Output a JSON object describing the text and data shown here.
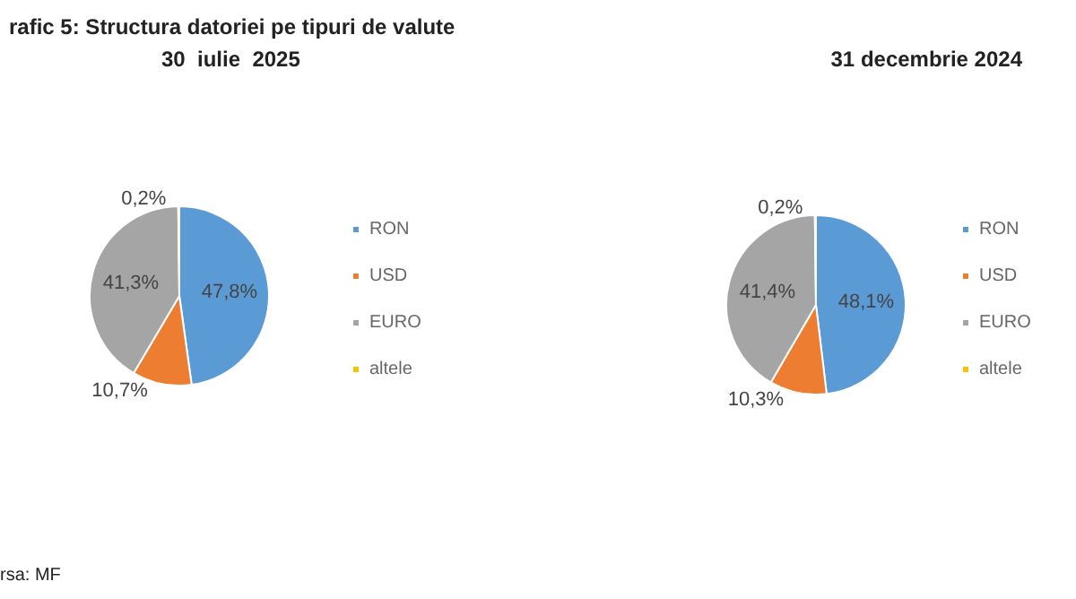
{
  "chart_data": [
    {
      "type": "pie",
      "title": "rafic 5: Structura datoriei pe tipuri de valute",
      "subtitle": "30  iulie  2025",
      "categories": [
        "RON",
        "USD",
        "EURO",
        "altele"
      ],
      "values": [
        47.8,
        10.7,
        41.3,
        0.2
      ],
      "value_labels": [
        "47,8%",
        "10,7%",
        "41,3%",
        "0,2%"
      ],
      "colors": [
        "#5b9bd5",
        "#ed7d31",
        "#a5a5a5",
        "#ffc000"
      ],
      "legend": "right",
      "annotations": [
        "rsa: MF"
      ]
    },
    {
      "type": "pie",
      "title": "31 decembrie 2024",
      "categories": [
        "RON",
        "USD",
        "EURO",
        "altele"
      ],
      "values": [
        48.1,
        10.3,
        41.4,
        0.2
      ],
      "value_labels": [
        "48,1%",
        "10,3%",
        "41,4%",
        "0,2%"
      ],
      "colors": [
        "#5b9bd5",
        "#ed7d31",
        "#a5a5a5",
        "#ffc000"
      ],
      "legend": "right"
    }
  ]
}
